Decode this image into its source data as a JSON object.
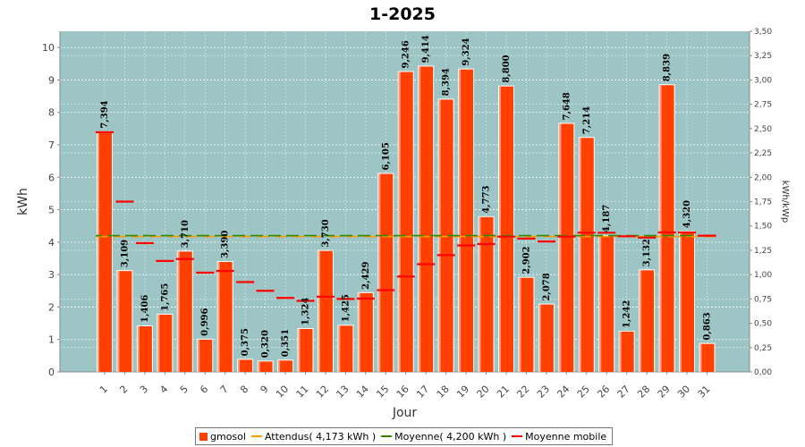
{
  "chart_data": {
    "type": "bar",
    "title": "1-2025",
    "xlabel": "Jour",
    "ylabel": "kWh",
    "y2label": "kWh/kWp",
    "ylim": [
      0,
      10.5
    ],
    "y2lim": [
      0,
      3.5
    ],
    "yticks": [
      "0",
      "1",
      "2",
      "3",
      "4",
      "5",
      "6",
      "7",
      "8",
      "9",
      "10"
    ],
    "y2ticks": [
      "0,00",
      "0,25",
      "0,50",
      "0,75",
      "1,00",
      "1,25",
      "1,50",
      "1,75",
      "2,00",
      "2,25",
      "2,50",
      "2,75",
      "3,00",
      "3,25",
      "3,50"
    ],
    "categories": [
      "1",
      "2",
      "3",
      "4",
      "5",
      "6",
      "7",
      "8",
      "9",
      "10",
      "11",
      "12",
      "13",
      "14",
      "15",
      "16",
      "17",
      "18",
      "19",
      "20",
      "21",
      "22",
      "23",
      "24",
      "25",
      "26",
      "27",
      "28",
      "29",
      "30",
      "31"
    ],
    "series": [
      {
        "name": "gmosol",
        "type": "bar",
        "color": "#ff4000",
        "values": [
          7.394,
          3.109,
          1.406,
          1.765,
          3.71,
          0.996,
          3.39,
          0.375,
          0.32,
          0.351,
          1.324,
          3.73,
          1.425,
          2.429,
          6.105,
          9.246,
          9.414,
          8.394,
          9.324,
          4.773,
          8.8,
          2.902,
          2.078,
          7.648,
          7.214,
          4.187,
          1.242,
          3.132,
          8.839,
          4.32,
          0.863
        ],
        "labels": [
          "7,394",
          "3,109",
          "1,406",
          "1,765",
          "3,710",
          "0,996",
          "3,390",
          "0,375",
          "0,320",
          "0,351",
          "1,324",
          "3,730",
          "1,425",
          "2,429",
          "6,105",
          "9,246",
          "9,414",
          "8,394",
          "9,324",
          "4,773",
          "8,800",
          "2,902",
          "2,078",
          "7,648",
          "7,214",
          "4,187",
          "1,242",
          "3,132",
          "8,839",
          "4,320",
          "0,863"
        ]
      },
      {
        "name": "Attendus( 4,173 kWh )",
        "type": "hline",
        "color": "#ff9a00",
        "value": 4.173
      },
      {
        "name": "Moyenne( 4,200 kWh )",
        "type": "hline",
        "color": "#2e8b00",
        "value": 4.2
      },
      {
        "name": "Moyenne mobile",
        "type": "marker",
        "color": "#ff0000",
        "values": [
          7.39,
          5.25,
          3.97,
          3.42,
          3.48,
          3.06,
          3.11,
          2.77,
          2.5,
          2.28,
          2.19,
          2.32,
          2.25,
          2.26,
          2.52,
          2.94,
          3.32,
          3.6,
          3.9,
          3.94,
          4.17,
          4.11,
          4.02,
          4.17,
          4.29,
          4.29,
          4.18,
          4.14,
          4.3,
          4.3,
          4.2
        ]
      }
    ],
    "legend_position": "bottom",
    "grid": true,
    "plot_background": "#9ec5c5"
  }
}
